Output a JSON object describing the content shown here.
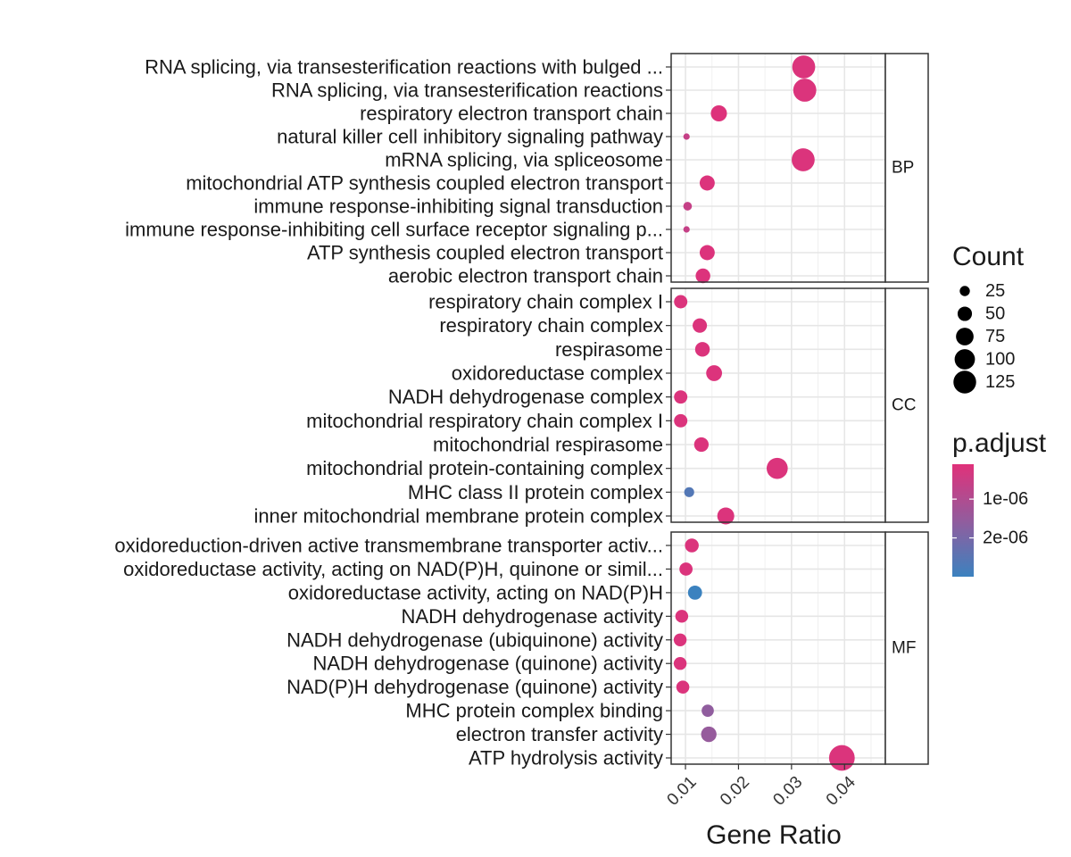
{
  "chart_data": {
    "type": "scatter",
    "subtype": "dotplot-faceted",
    "xlabel": "Gene Ratio",
    "xlim": [
      0.0073,
      0.0477
    ],
    "xticks": [
      0.01,
      0.02,
      0.03,
      0.04
    ],
    "xtick_labels": [
      "0.01",
      "0.02",
      "0.03",
      "0.04"
    ],
    "grid": true,
    "legend_position": "right",
    "facets": [
      {
        "label": "BP",
        "terms": [
          {
            "term": "RNA splicing, via transesterification reactions with bulged ...",
            "gene_ratio": 0.0323,
            "count": 128,
            "p_adjust": 2e-07
          },
          {
            "term": "RNA splicing, via transesterification reactions",
            "gene_ratio": 0.0325,
            "count": 129,
            "p_adjust": 2e-07
          },
          {
            "term": "respiratory electron transport chain",
            "gene_ratio": 0.0163,
            "count": 63,
            "p_adjust": 1.5e-07
          },
          {
            "term": "natural killer cell inhibitory signaling pathway",
            "gene_ratio": 0.0102,
            "count": 10,
            "p_adjust": 6e-07
          },
          {
            "term": "mRNA splicing, via spliceosome",
            "gene_ratio": 0.0322,
            "count": 128,
            "p_adjust": 2e-07
          },
          {
            "term": "mitochondrial ATP synthesis coupled electron transport",
            "gene_ratio": 0.0141,
            "count": 55,
            "p_adjust": 1.8e-07
          },
          {
            "term": "immune response-inhibiting signal transduction",
            "gene_ratio": 0.0104,
            "count": 18,
            "p_adjust": 6e-07
          },
          {
            "term": "immune response-inhibiting cell surface receptor signaling p...",
            "gene_ratio": 0.0102,
            "count": 10,
            "p_adjust": 6e-07
          },
          {
            "term": "ATP synthesis coupled electron transport",
            "gene_ratio": 0.0141,
            "count": 55,
            "p_adjust": 1.8e-07
          },
          {
            "term": "aerobic electron transport chain",
            "gene_ratio": 0.0133,
            "count": 52,
            "p_adjust": 1.8e-07
          }
        ]
      },
      {
        "label": "CC",
        "terms": [
          {
            "term": "respiratory chain complex I",
            "gene_ratio": 0.0091,
            "count": 43,
            "p_adjust": 2e-07
          },
          {
            "term": "respiratory chain complex",
            "gene_ratio": 0.0127,
            "count": 50,
            "p_adjust": 2e-07
          },
          {
            "term": "respirasome",
            "gene_ratio": 0.0132,
            "count": 52,
            "p_adjust": 2e-07
          },
          {
            "term": "oxidoreductase complex",
            "gene_ratio": 0.0154,
            "count": 61,
            "p_adjust": 1.8e-07
          },
          {
            "term": "NADH dehydrogenase complex",
            "gene_ratio": 0.0091,
            "count": 43,
            "p_adjust": 2e-07
          },
          {
            "term": "mitochondrial respiratory chain complex I",
            "gene_ratio": 0.0091,
            "count": 43,
            "p_adjust": 2e-07
          },
          {
            "term": "mitochondrial respirasome",
            "gene_ratio": 0.013,
            "count": 51,
            "p_adjust": 2e-07
          },
          {
            "term": "mitochondrial protein-containing complex",
            "gene_ratio": 0.0273,
            "count": 108,
            "p_adjust": 2e-07
          },
          {
            "term": "MHC class II protein complex",
            "gene_ratio": 0.0107,
            "count": 24,
            "p_adjust": 2.6e-06
          },
          {
            "term": "inner mitochondrial membrane protein complex",
            "gene_ratio": 0.0176,
            "count": 70,
            "p_adjust": 2e-07
          }
        ]
      },
      {
        "label": "MF",
        "terms": [
          {
            "term": "oxidoreduction-driven active transmembrane transporter activ...",
            "gene_ratio": 0.0112,
            "count": 46,
            "p_adjust": 2e-07
          },
          {
            "term": "oxidoreductase activity, acting on NAD(P)H, quinone or simil...",
            "gene_ratio": 0.0101,
            "count": 42,
            "p_adjust": 2e-07
          },
          {
            "term": "oxidoreductase activity, acting on NAD(P)H",
            "gene_ratio": 0.0118,
            "count": 48,
            "p_adjust": 3e-06
          },
          {
            "term": "NADH dehydrogenase activity",
            "gene_ratio": 0.0093,
            "count": 40,
            "p_adjust": 2e-07
          },
          {
            "term": "NADH dehydrogenase (ubiquinone) activity",
            "gene_ratio": 0.009,
            "count": 40,
            "p_adjust": 2e-07
          },
          {
            "term": "NADH dehydrogenase (quinone) activity",
            "gene_ratio": 0.009,
            "count": 40,
            "p_adjust": 2e-07
          },
          {
            "term": "NAD(P)H dehydrogenase (quinone) activity",
            "gene_ratio": 0.0095,
            "count": 41,
            "p_adjust": 2e-07
          },
          {
            "term": "MHC protein complex binding",
            "gene_ratio": 0.0142,
            "count": 36,
            "p_adjust": 1.6e-06
          },
          {
            "term": "electron transfer activity",
            "gene_ratio": 0.0144,
            "count": 58,
            "p_adjust": 1.5e-06
          },
          {
            "term": "ATP hydrolysis activity",
            "gene_ratio": 0.0395,
            "count": 160,
            "p_adjust": 2e-07
          }
        ]
      }
    ],
    "size_legend": {
      "title": "Count",
      "breaks": [
        25,
        50,
        75,
        100,
        125
      ],
      "labels": [
        "25",
        "50",
        "75",
        "100",
        "125"
      ]
    },
    "color_legend": {
      "title": "p.adjust",
      "range": [
        1e-07,
        3e-06
      ],
      "breaks": [
        1e-06,
        2e-06
      ],
      "labels": [
        "1e-06",
        "2e-06"
      ],
      "low_color": "#e0317a",
      "high_color": "#3b82bf"
    }
  }
}
